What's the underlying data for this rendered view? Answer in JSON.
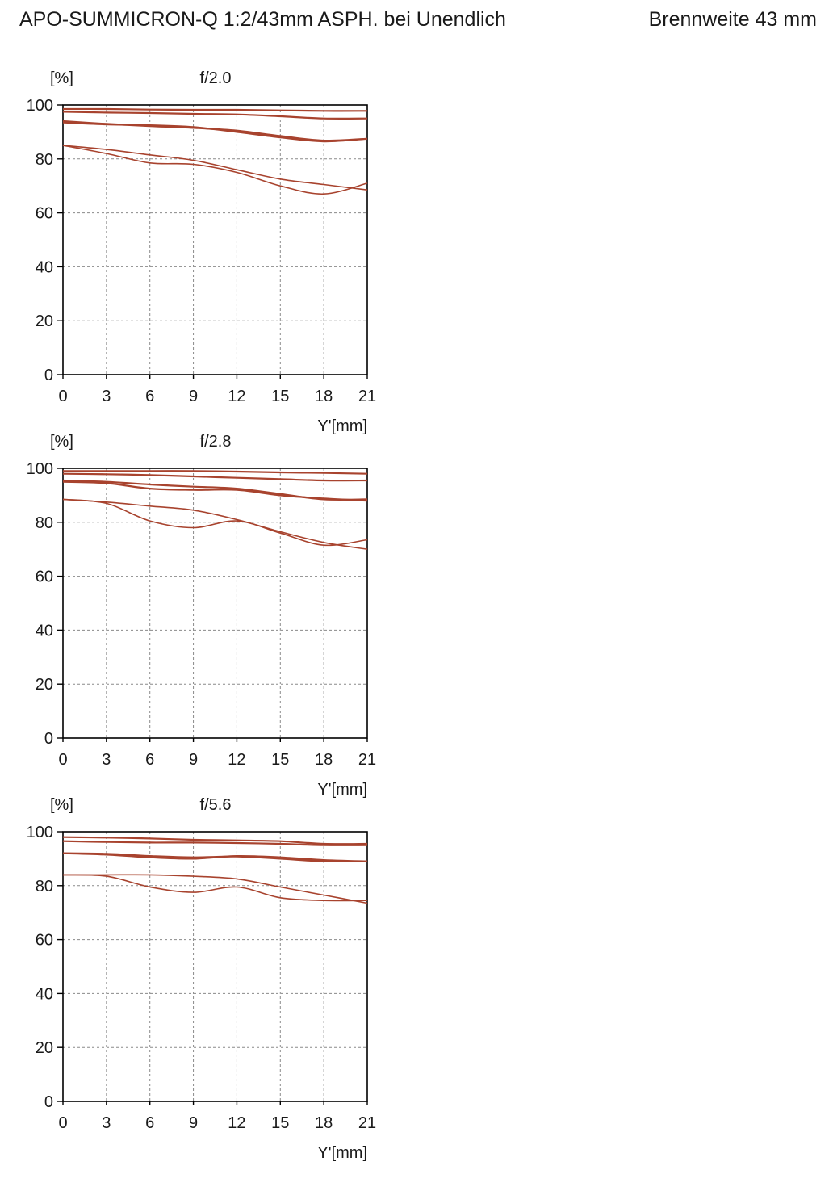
{
  "header": {
    "title": "APO-SUMMICRON-Q 1:2/43mm ASPH. bei Unendlich",
    "focal": "Brennweite 43 mm"
  },
  "colors": {
    "curve": "#a8432e",
    "axis": "#000000",
    "grid": "#8a8a8a"
  },
  "chart_data": [
    {
      "type": "line",
      "title": "f/2.0",
      "xlabel": "Y'[mm]",
      "ylabel": "[%]",
      "xlim": [
        0,
        21
      ],
      "ylim": [
        0,
        100
      ],
      "xticks": [
        0,
        3,
        6,
        9,
        12,
        15,
        18,
        21
      ],
      "yticks": [
        0,
        20,
        40,
        60,
        80,
        100
      ],
      "grid": true,
      "x": [
        0,
        3,
        6,
        9,
        12,
        15,
        18,
        21
      ],
      "series": [
        {
          "values": [
            98.5,
            98.5,
            98.3,
            98.2,
            98.2,
            98.0,
            97.8,
            97.8
          ]
        },
        {
          "values": [
            97.5,
            97.2,
            97.0,
            96.7,
            96.5,
            95.8,
            95.0,
            95.0
          ]
        },
        {
          "values": [
            94.0,
            93.0,
            92.2,
            91.5,
            90.5,
            88.5,
            86.8,
            87.5
          ]
        },
        {
          "values": [
            93.5,
            92.8,
            92.5,
            91.8,
            90.0,
            88.0,
            86.5,
            87.5
          ]
        },
        {
          "values": [
            85.0,
            83.5,
            81.5,
            79.5,
            76.0,
            72.5,
            70.5,
            68.5
          ]
        },
        {
          "values": [
            85.0,
            82.0,
            78.5,
            78.0,
            75.0,
            70.0,
            67.0,
            71.0
          ]
        }
      ]
    },
    {
      "type": "line",
      "title": "f/2.8",
      "xlabel": "Y'[mm]",
      "ylabel": "[%]",
      "xlim": [
        0,
        21
      ],
      "ylim": [
        0,
        100
      ],
      "xticks": [
        0,
        3,
        6,
        9,
        12,
        15,
        18,
        21
      ],
      "yticks": [
        0,
        20,
        40,
        60,
        80,
        100
      ],
      "grid": true,
      "x": [
        0,
        3,
        6,
        9,
        12,
        15,
        18,
        21
      ],
      "series": [
        {
          "values": [
            99.0,
            99.0,
            99.0,
            99.0,
            98.8,
            98.5,
            98.3,
            98.0
          ]
        },
        {
          "values": [
            98.0,
            97.8,
            97.5,
            97.0,
            96.5,
            96.0,
            95.5,
            95.5
          ]
        },
        {
          "values": [
            95.5,
            95.0,
            94.0,
            93.2,
            92.5,
            90.5,
            88.5,
            88.5
          ]
        },
        {
          "values": [
            95.0,
            94.5,
            92.5,
            92.0,
            92.0,
            90.0,
            88.8,
            88.0
          ]
        },
        {
          "values": [
            88.5,
            87.5,
            86.0,
            84.5,
            81.0,
            76.5,
            72.5,
            70.0
          ]
        },
        {
          "values": [
            88.5,
            87.0,
            80.5,
            78.0,
            80.5,
            76.0,
            71.5,
            73.5
          ]
        }
      ]
    },
    {
      "type": "line",
      "title": "f/5.6",
      "xlabel": "Y'[mm]",
      "ylabel": "[%]",
      "xlim": [
        0,
        21
      ],
      "ylim": [
        0,
        100
      ],
      "xticks": [
        0,
        3,
        6,
        9,
        12,
        15,
        18,
        21
      ],
      "yticks": [
        0,
        20,
        40,
        60,
        80,
        100
      ],
      "grid": true,
      "x": [
        0,
        3,
        6,
        9,
        12,
        15,
        18,
        21
      ],
      "series": [
        {
          "values": [
            98.0,
            97.8,
            97.5,
            97.0,
            96.8,
            96.5,
            95.5,
            95.5
          ]
        },
        {
          "values": [
            96.5,
            96.2,
            96.0,
            96.0,
            95.8,
            95.5,
            95.0,
            95.0
          ]
        },
        {
          "values": [
            92.0,
            91.8,
            91.0,
            90.5,
            90.8,
            90.0,
            89.0,
            89.0
          ]
        },
        {
          "values": [
            92.0,
            91.5,
            90.5,
            90.0,
            91.0,
            90.5,
            89.5,
            89.0
          ]
        },
        {
          "values": [
            84.0,
            84.0,
            84.0,
            83.5,
            82.5,
            79.5,
            76.5,
            73.5
          ]
        },
        {
          "values": [
            84.0,
            83.5,
            79.5,
            77.5,
            79.5,
            75.5,
            74.5,
            74.5
          ]
        }
      ]
    }
  ]
}
